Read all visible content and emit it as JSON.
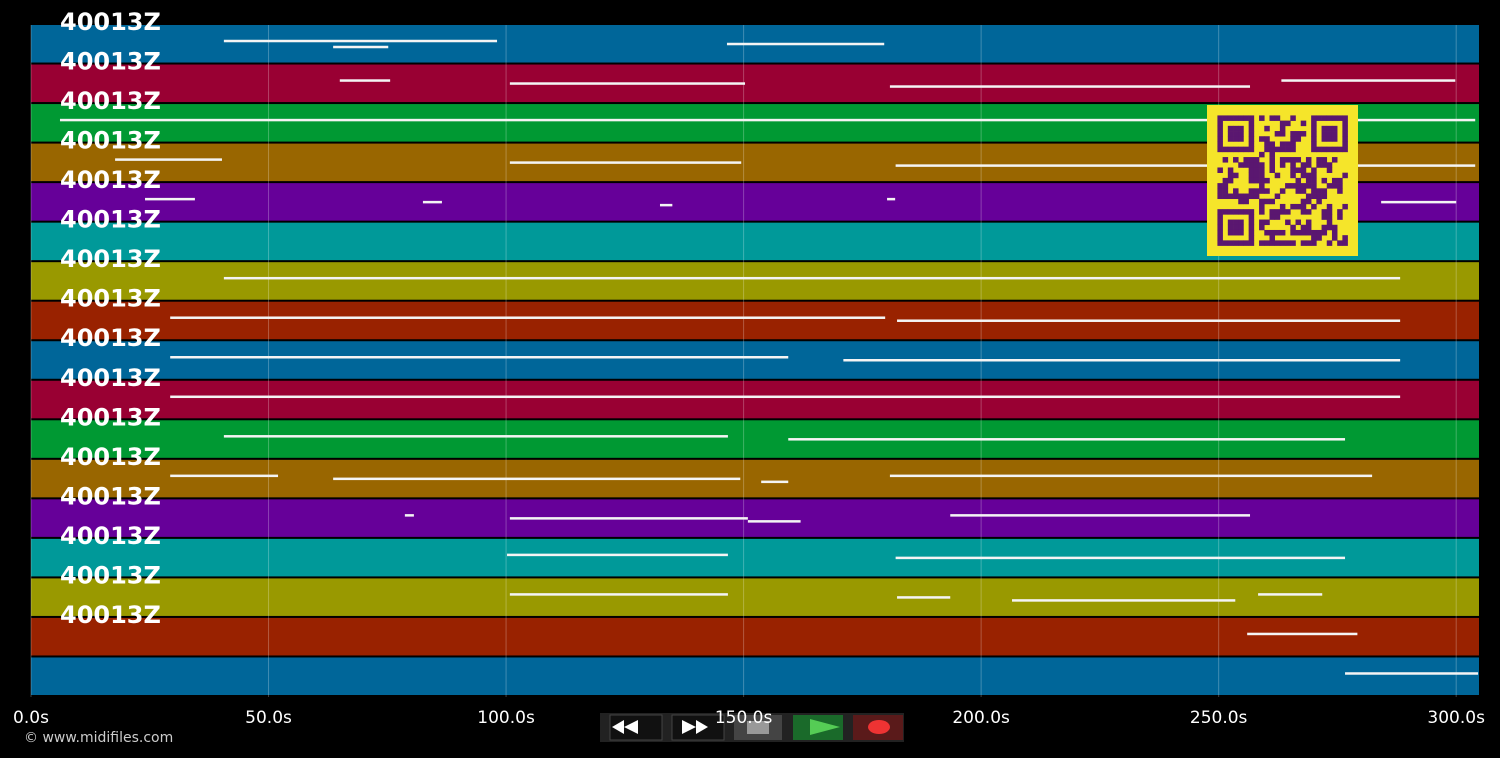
{
  "chart_data": {
    "type": "pianoroll",
    "xlim": [
      0,
      304.8
    ],
    "xticks": [
      {
        "value": 0,
        "label": "0.0s"
      },
      {
        "value": 50,
        "label": "50.0s"
      },
      {
        "value": 100,
        "label": "100.0s"
      },
      {
        "value": 150,
        "label": "150.0s"
      },
      {
        "value": 200,
        "label": "200.0s"
      },
      {
        "value": 250,
        "label": "250.0s"
      },
      {
        "value": 300,
        "label": "300.0s"
      }
    ],
    "grid": true,
    "tracks": [
      {
        "label": "40013Z",
        "color": "#006699",
        "notes": [
          [
            40.6,
            98.1
          ],
          [
            146.5,
            179.6
          ],
          [
            63.6,
            75.2
          ]
        ]
      },
      {
        "label": "40013Z",
        "color": "#990033",
        "notes": [
          [
            65,
            75.6
          ],
          [
            100.8,
            150.3
          ],
          [
            180.8,
            256.6
          ],
          [
            263.2,
            299.8
          ]
        ]
      },
      {
        "label": "40013Z",
        "color": "#009933",
        "notes": [
          [
            6.1,
            304.0
          ]
        ]
      },
      {
        "label": "40013Z",
        "color": "#996600",
        "notes": [
          [
            17.7,
            40.2
          ],
          [
            100.8,
            149.5
          ],
          [
            182,
            304
          ]
        ]
      },
      {
        "label": "40013Z",
        "color": "#660099",
        "notes": [
          [
            24,
            34.5
          ],
          [
            82.5,
            86.5
          ],
          [
            132.4,
            135
          ],
          [
            180.2,
            181.9
          ],
          [
            284.2,
            300
          ]
        ]
      },
      {
        "label": "40013Z",
        "color": "#009999",
        "notes": []
      },
      {
        "label": "40013Z",
        "color": "#999900",
        "notes": [
          [
            40.6,
            288.2
          ]
        ]
      },
      {
        "label": "40013Z",
        "color": "#992200",
        "notes": [
          [
            29.3,
            179.8
          ],
          [
            182.3,
            288.2
          ]
        ]
      },
      {
        "label": "40013Z",
        "color": "#006699",
        "notes": [
          [
            29.3,
            159.4
          ],
          [
            171,
            288.2
          ]
        ]
      },
      {
        "label": "40013Z",
        "color": "#990033",
        "notes": [
          [
            29.3,
            288.2
          ]
        ]
      },
      {
        "label": "40013Z",
        "color": "#009933",
        "notes": [
          [
            40.6,
            146.7
          ],
          [
            159.4,
            276.6
          ]
        ]
      },
      {
        "label": "40013Z",
        "color": "#996600",
        "notes": [
          [
            29.3,
            52
          ],
          [
            63.6,
            149.3
          ],
          [
            153.7,
            159.4
          ],
          [
            180.8,
            282.3
          ]
        ]
      },
      {
        "label": "40013Z",
        "color": "#660099",
        "notes": [
          [
            78.7,
            80.6
          ],
          [
            100.8,
            150.9
          ],
          [
            150.9,
            162
          ],
          [
            193.5,
            256.6
          ]
        ]
      },
      {
        "label": "40013Z",
        "color": "#009999",
        "notes": [
          [
            100.2,
            146.7
          ],
          [
            182,
            276.6
          ]
        ]
      },
      {
        "label": "40013Z",
        "color": "#999900",
        "notes": [
          [
            100.8,
            146.7
          ],
          [
            182.3,
            193.5
          ],
          [
            206.5,
            253.5
          ],
          [
            258.3,
            271.8
          ]
        ]
      },
      {
        "label": "40013Z",
        "color": "#992200",
        "notes": [
          [
            256,
            279.2
          ]
        ]
      },
      {
        "label": null,
        "color": "#006699",
        "notes": [
          [
            276.6,
            304.6
          ]
        ]
      }
    ]
  },
  "footer": {
    "copyright": "© www.midifiles.com"
  }
}
